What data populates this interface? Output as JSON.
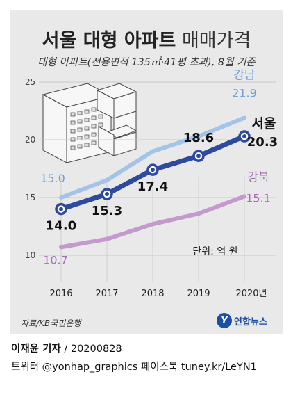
{
  "header": {
    "title_bold": "서울 대형 아파트",
    "title_light": "매매가격",
    "subtitle": "대형 아파트(전용면적 135㎡·41평 초과), 8월 기준"
  },
  "chart_data": {
    "type": "line",
    "categories": [
      "2016",
      "2017",
      "2018",
      "2019",
      "2020년"
    ],
    "ylim": [
      10,
      25
    ],
    "yticks": [
      "10",
      "15",
      "20",
      "25"
    ],
    "unit_note": "단위: 억 원",
    "series": [
      {
        "name": "강남",
        "values": [
          15.0,
          16.5,
          19.0,
          20.3,
          21.9
        ],
        "color": "#a3c4e8",
        "labels": [
          "15.0",
          null,
          null,
          null,
          "21.9"
        ],
        "label_color": "#6f9fd8"
      },
      {
        "name": "서울",
        "values": [
          14.0,
          15.3,
          17.4,
          18.6,
          20.3
        ],
        "color": "#2e4a9e",
        "labels": [
          "14.0",
          "15.3",
          "17.4",
          "18.6",
          "20.3"
        ],
        "label_color": "#111111"
      },
      {
        "name": "강북",
        "values": [
          10.7,
          11.4,
          12.7,
          13.6,
          15.1
        ],
        "color": "#c39acb",
        "labels": [
          "10.7",
          null,
          null,
          null,
          "15.1"
        ],
        "label_color": "#a56cb3"
      }
    ]
  },
  "footer": {
    "source": "자료/KB국민은행",
    "logo_mark": "Y",
    "logo_text": "연합뉴스",
    "reporter": "이재윤 기자",
    "date": " / 20200828",
    "sns": "트위터 @yonhap_graphics  페이스북 tuney.kr/LeYN1"
  }
}
